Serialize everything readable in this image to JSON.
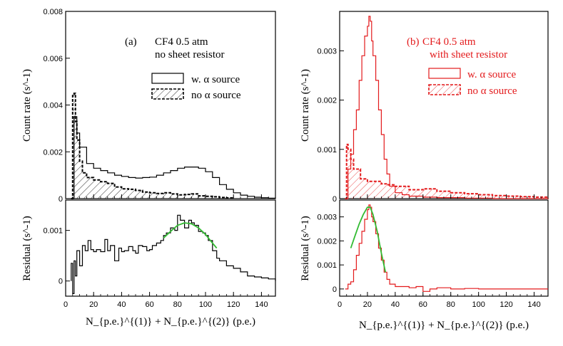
{
  "colors": {
    "left": "#000000",
    "right": "#e31a1c",
    "fit": "#33bb33"
  },
  "xlabel": "N_{p.e.}^{(1)} + N_{p.e.}^{(2)} (p.e.)",
  "chart_data": [
    {
      "id": "a-top",
      "type": "line",
      "panel": "(a)",
      "title_lines": [
        "CF4 0.5 atm",
        "no sheet resistor"
      ],
      "ylabel": "Count rate (s^-1)",
      "xlim": [
        0,
        150
      ],
      "ylim": [
        0,
        0.008
      ],
      "xticks": [
        0,
        20,
        40,
        60,
        80,
        100,
        120,
        140
      ],
      "yticks": [
        0,
        0.002,
        0.004,
        0.006,
        0.008
      ],
      "ytick_labels": [
        "0",
        "0.002",
        "0.004",
        "0.006",
        "0.008"
      ],
      "show_xtick_labels": false,
      "legend": [
        {
          "label": "w. α source",
          "style": "solid"
        },
        {
          "label": "no α source",
          "style": "dashed-hatched"
        }
      ],
      "series": [
        {
          "name": "w. α source",
          "style": "solid",
          "x": [
            4,
            6,
            8,
            10,
            15,
            20,
            25,
            30,
            35,
            40,
            45,
            50,
            55,
            60,
            65,
            70,
            75,
            80,
            85,
            90,
            95,
            100,
            105,
            110,
            115,
            120,
            125,
            130,
            135,
            140,
            145,
            150
          ],
          "y": [
            0.0,
            0.0035,
            0.0028,
            0.0022,
            0.0015,
            0.0013,
            0.0012,
            0.0011,
            0.001,
            0.00095,
            0.0009,
            0.00088,
            0.0009,
            0.00092,
            0.001,
            0.0011,
            0.0012,
            0.0013,
            0.00135,
            0.00135,
            0.0013,
            0.00115,
            0.0009,
            0.0006,
            0.0004,
            0.00025,
            0.00015,
            0.0001,
            6e-05,
            4e-05,
            2e-05,
            0.0
          ]
        },
        {
          "name": "no α source",
          "style": "dashed-hatched",
          "x": [
            4,
            5,
            6,
            7,
            8,
            10,
            12,
            15,
            20,
            25,
            30,
            35,
            40,
            45,
            50,
            55,
            60,
            65,
            70,
            75,
            80,
            85,
            90,
            95,
            100,
            105,
            110,
            115,
            120
          ],
          "y": [
            0.0,
            0.0044,
            0.0045,
            0.0033,
            0.0025,
            0.0016,
            0.0011,
            0.0009,
            0.0008,
            0.00072,
            0.00065,
            0.0005,
            0.00042,
            0.0004,
            0.00035,
            0.00028,
            0.00025,
            0.00022,
            0.00025,
            0.0002,
            0.00016,
            0.00018,
            0.0002,
            0.00012,
            0.0001,
            8e-05,
            5e-05,
            3e-05,
            0.0
          ]
        }
      ]
    },
    {
      "id": "a-bottom",
      "type": "line",
      "ylabel": "Residual (s^-1)",
      "xlim": [
        0,
        150
      ],
      "ylim": [
        -0.0003,
        0.0016
      ],
      "xticks": [
        0,
        20,
        40,
        60,
        80,
        100,
        120,
        140
      ],
      "yticks": [
        0,
        0.001
      ],
      "ytick_labels": [
        "0",
        "0.001"
      ],
      "show_xtick_labels": true,
      "series": [
        {
          "name": "residual",
          "style": "solid",
          "x": [
            4,
            5,
            6,
            7,
            8,
            10,
            12,
            14,
            16,
            18,
            20,
            22,
            25,
            28,
            30,
            32,
            35,
            38,
            40,
            42,
            45,
            48,
            50,
            52,
            55,
            58,
            60,
            62,
            65,
            68,
            70,
            72,
            75,
            78,
            80,
            82,
            85,
            88,
            90,
            92,
            95,
            98,
            100,
            102,
            105,
            108,
            110,
            115,
            120,
            125,
            130,
            135,
            140,
            145,
            150
          ],
          "y": [
            0.00035,
            -0.00025,
            0.0004,
            0.0001,
            0.0006,
            0.0003,
            0.0007,
            0.0006,
            0.0008,
            0.00062,
            0.00058,
            0.00062,
            0.00058,
            0.00082,
            0.0006,
            0.0007,
            0.0004,
            0.00065,
            0.00058,
            0.0006,
            0.00068,
            0.0006,
            0.00055,
            0.0007,
            0.00068,
            0.0006,
            0.00062,
            0.0007,
            0.00075,
            0.0008,
            0.0009,
            0.00095,
            0.00105,
            0.001,
            0.0013,
            0.0012,
            0.00105,
            0.0012,
            0.00115,
            0.0011,
            0.00098,
            0.00095,
            0.0009,
            0.0008,
            0.0006,
            0.00045,
            0.0004,
            0.0003,
            0.00025,
            0.00018,
            0.0001,
            8e-05,
            6e-05,
            4e-05,
            2e-05
          ]
        },
        {
          "name": "fit",
          "style": "fit",
          "x": [
            70,
            75,
            80,
            85,
            90,
            95,
            100,
            105,
            108
          ],
          "y": [
            0.00085,
            0.00098,
            0.0011,
            0.00115,
            0.00113,
            0.00105,
            0.00092,
            0.00075,
            0.00065
          ]
        }
      ]
    },
    {
      "id": "b-top",
      "type": "line",
      "panel": "(b)",
      "title_lines": [
        "CF4 0.5 atm",
        "with sheet resistor"
      ],
      "ylabel": "Count rate (s^-1)",
      "xlim": [
        0,
        150
      ],
      "ylim": [
        0,
        0.0038
      ],
      "xticks": [
        0,
        20,
        40,
        60,
        80,
        100,
        120,
        140
      ],
      "yticks": [
        0,
        0.001,
        0.002,
        0.003
      ],
      "ytick_labels": [
        "0",
        "0.001",
        "0.002",
        "0.003"
      ],
      "show_xtick_labels": false,
      "legend": [
        {
          "label": "w. α source",
          "style": "solid"
        },
        {
          "label": "no α source",
          "style": "dashed-hatched"
        }
      ],
      "series": [
        {
          "name": "w. α source",
          "style": "solid",
          "x": [
            4,
            6,
            8,
            10,
            12,
            14,
            16,
            18,
            20,
            21,
            22,
            23,
            24,
            26,
            28,
            30,
            32,
            34,
            36,
            40,
            45,
            50,
            60,
            70,
            80,
            90,
            100,
            110,
            120,
            130,
            140,
            150
          ],
          "y": [
            0.0,
            0.0006,
            0.0009,
            0.0014,
            0.0018,
            0.0024,
            0.0029,
            0.0033,
            0.0035,
            0.0037,
            0.0036,
            0.0032,
            0.0029,
            0.0024,
            0.0018,
            0.0013,
            0.0008,
            0.0005,
            0.00025,
            0.00012,
            8e-05,
            5e-05,
            3e-05,
            2e-05,
            2e-05,
            1e-05,
            1e-05,
            0.0,
            0.0,
            0.0,
            0.0,
            0.0
          ]
        },
        {
          "name": "no α source",
          "style": "dashed-hatched",
          "x": [
            4,
            5,
            6,
            8,
            10,
            15,
            20,
            25,
            30,
            35,
            40,
            50,
            60,
            70,
            80,
            90,
            100,
            110,
            120,
            130,
            140,
            150
          ],
          "y": [
            0.0,
            0.0011,
            0.001,
            0.0008,
            0.0006,
            0.0004,
            0.00035,
            0.00035,
            0.0003,
            0.00028,
            0.00025,
            0.00018,
            0.0002,
            0.00015,
            0.00012,
            0.0001,
            8e-05,
            6e-05,
            5e-05,
            4e-05,
            3e-05,
            0.0
          ]
        }
      ]
    },
    {
      "id": "b-bottom",
      "type": "line",
      "ylabel": "Residual (s^-1)",
      "xlim": [
        0,
        150
      ],
      "ylim": [
        -0.0003,
        0.0037
      ],
      "xticks": [
        0,
        20,
        40,
        60,
        80,
        100,
        120,
        140
      ],
      "yticks": [
        0,
        0.001,
        0.002,
        0.003
      ],
      "ytick_labels": [
        "0",
        "0.001",
        "0.002",
        "0.003"
      ],
      "show_xtick_labels": true,
      "series": [
        {
          "name": "residual",
          "style": "solid",
          "x": [
            4,
            6,
            8,
            10,
            12,
            14,
            16,
            18,
            20,
            21,
            22,
            23,
            24,
            26,
            28,
            30,
            32,
            34,
            36,
            40,
            45,
            50,
            55,
            60,
            65,
            70,
            80,
            90,
            100,
            110,
            120,
            130,
            140,
            150
          ],
          "y": [
            0.0,
            0.0002,
            0.0003,
            0.0008,
            0.0014,
            0.0019,
            0.0024,
            0.0029,
            0.0033,
            0.0035,
            0.0034,
            0.003,
            0.0028,
            0.0023,
            0.0017,
            0.0012,
            0.0007,
            0.0004,
            0.0002,
            0.0001,
            0.0001,
            5e-05,
            0.0001,
            -0.0001,
            0.0,
            5e-05,
            0.0,
            2e-05,
            0.0,
            0.0,
            0.0,
            0.0,
            0.0,
            0.0
          ]
        },
        {
          "name": "fit",
          "style": "fit",
          "x": [
            8,
            11,
            14,
            17,
            20,
            22,
            24,
            27,
            30,
            33
          ],
          "y": [
            0.0017,
            0.0022,
            0.0027,
            0.0031,
            0.0034,
            0.0034,
            0.0031,
            0.0024,
            0.0015,
            0.0007
          ]
        }
      ]
    }
  ]
}
